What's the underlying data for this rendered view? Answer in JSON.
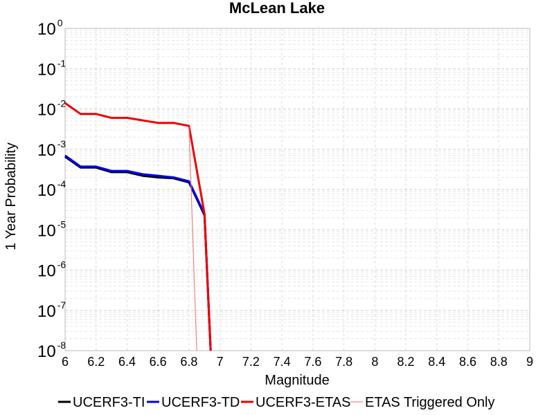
{
  "chart_data": {
    "type": "line",
    "title": "McLean Lake",
    "xlabel": "Magnitude",
    "ylabel": "1 Year Probability",
    "xlim": [
      6,
      9
    ],
    "ylim": [
      1e-08,
      1
    ],
    "yscale": "log",
    "grid": true,
    "legend_position": "bottom",
    "x_ticks": [
      "6",
      "6.2",
      "6.4",
      "6.6",
      "6.8",
      "7",
      "7.2",
      "7.4",
      "7.6",
      "7.8",
      "8",
      "8.2",
      "8.4",
      "8.6",
      "8.8",
      "9"
    ],
    "y_ticks": [
      {
        "base": "10",
        "exp": "0"
      },
      {
        "base": "10",
        "exp": "-1"
      },
      {
        "base": "10",
        "exp": "-2"
      },
      {
        "base": "10",
        "exp": "-3"
      },
      {
        "base": "10",
        "exp": "-4"
      },
      {
        "base": "10",
        "exp": "-5"
      },
      {
        "base": "10",
        "exp": "-6"
      },
      {
        "base": "10",
        "exp": "-7"
      },
      {
        "base": "10",
        "exp": "-8"
      }
    ],
    "series": [
      {
        "name": "UCERF3-TI",
        "color": "#000000",
        "width": 3,
        "x": [
          6.0,
          6.1,
          6.2,
          6.3,
          6.4,
          6.5,
          6.6,
          6.7,
          6.8,
          6.9,
          6.94
        ],
        "y": [
          0.00065,
          0.00035,
          0.00035,
          0.00027,
          0.00027,
          0.00022,
          0.0002,
          0.00019,
          0.00015,
          2.3e-05,
          1e-08
        ]
      },
      {
        "name": "UCERF3-TD",
        "color": "#0000ee",
        "width": 3,
        "x": [
          6.0,
          6.1,
          6.2,
          6.3,
          6.4,
          6.5,
          6.6,
          6.7,
          6.8,
          6.9,
          6.94
        ],
        "y": [
          0.0007,
          0.00037,
          0.00037,
          0.00029,
          0.00029,
          0.00024,
          0.00022,
          0.0002,
          0.00016,
          2.5e-05,
          1e-08
        ]
      },
      {
        "name": "UCERF3-ETAS",
        "color": "#ee0000",
        "width": 3,
        "x": [
          6.0,
          6.1,
          6.2,
          6.3,
          6.4,
          6.5,
          6.6,
          6.7,
          6.8,
          6.9,
          6.94
        ],
        "y": [
          0.014,
          0.0075,
          0.0075,
          0.006,
          0.006,
          0.0052,
          0.0045,
          0.0045,
          0.0038,
          2.5e-05,
          1e-08
        ]
      },
      {
        "name": "ETAS Triggered Only",
        "color": "#f08080",
        "width": 1.2,
        "x": [
          6.8,
          6.85
        ],
        "y": [
          0.0036,
          1e-08
        ]
      }
    ]
  }
}
